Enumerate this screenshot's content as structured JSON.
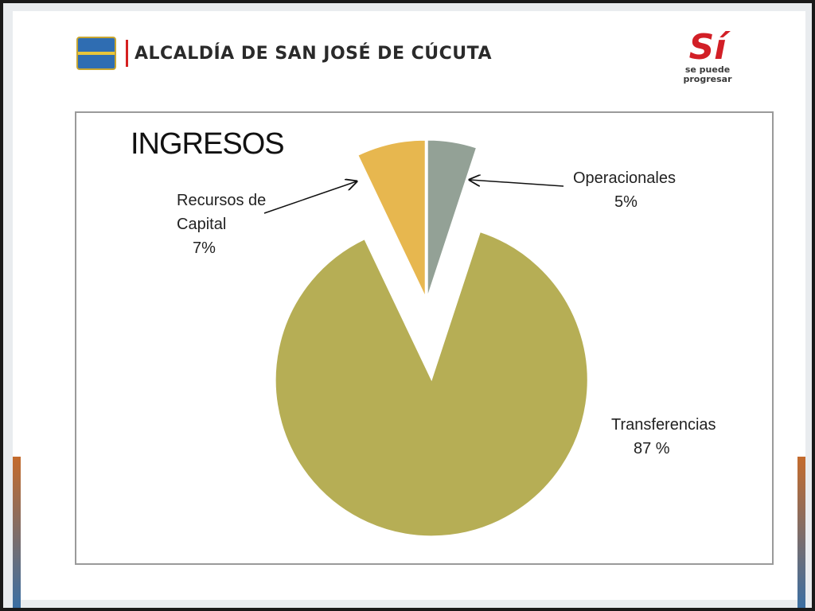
{
  "header": {
    "org_name": "ALCALDÍA DE SAN JOSÉ DE CÚCUTA",
    "brand_big": "Sí",
    "brand_line1": "se puede",
    "brand_line2": "progresar"
  },
  "chart_data": {
    "type": "pie",
    "title": "INGRESOS",
    "exploded": true,
    "slices": [
      {
        "name": "Operacionales",
        "label_value": "5%",
        "percent": 5,
        "color": "#93a196"
      },
      {
        "name": "Transferencias",
        "label_value": "87 %",
        "percent": 87,
        "color": "#b6ae55"
      },
      {
        "name": "Recursos de Capital",
        "label_value": "7%",
        "percent": 7,
        "color": "#e7b74f"
      }
    ]
  }
}
